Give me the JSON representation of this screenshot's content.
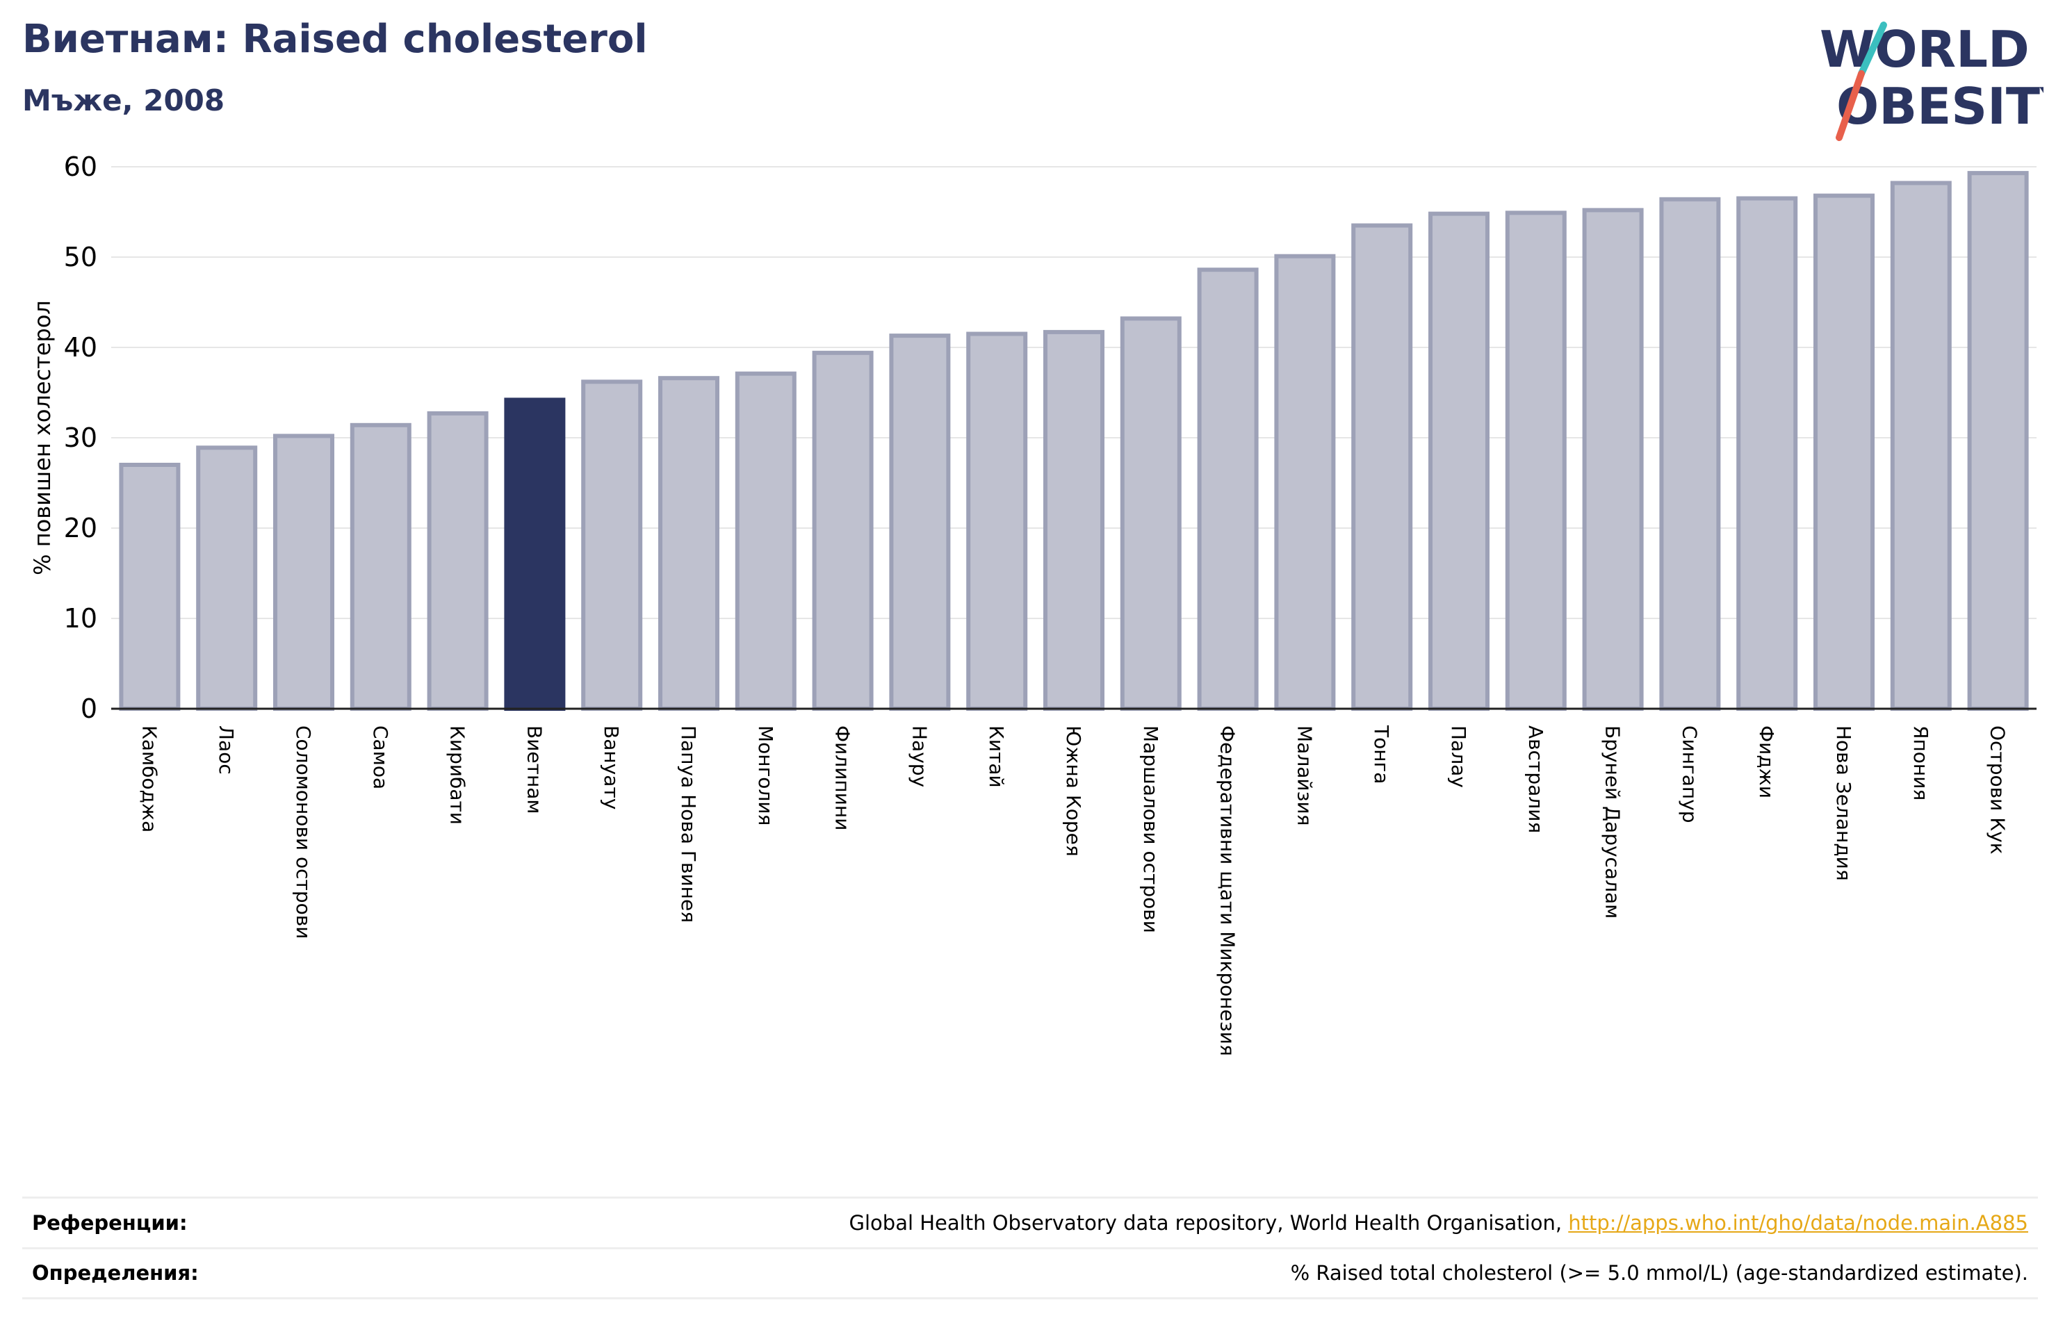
{
  "header": {
    "title": "Виетнам: Raised cholesterol",
    "subtitle": "Мъже, 2008"
  },
  "logo": {
    "line1": "WORLD",
    "line2": "OBESITY",
    "accent_teal": "#3bbfbf",
    "accent_red": "#e8604c"
  },
  "colors": {
    "highlight_bar": "#2b3561",
    "bar": "#bfc1cf",
    "bar_border": "#9da1b7",
    "text_dark": "#2b3561"
  },
  "chart_data": {
    "type": "bar",
    "title": "Виетнам: Raised cholesterol",
    "subtitle": "Мъже, 2008",
    "ylabel": "% повишен холестерол",
    "xlabel": "",
    "ylim": [
      0,
      60
    ],
    "yticks": [
      0,
      10,
      20,
      30,
      40,
      50,
      60
    ],
    "grid": true,
    "highlight": "Виетнам",
    "categories": [
      "Камбоджа",
      "Лаос",
      "Соломонови острови",
      "Самоа",
      "Кирибати",
      "Виетнам",
      "Вануату",
      "Папуа Нова Гвинея",
      "Монголия",
      "Филипини",
      "Науру",
      "Китай",
      "Южна Корея",
      "Маршалови острови",
      "Федеративни щати Микронезия",
      "Малайзия",
      "Тонга",
      "Палау",
      "Австралия",
      "Бруней Дарусалам",
      "Сингапур",
      "Фиджи",
      "Нова Зеландия",
      "Япония",
      "Острови Кук"
    ],
    "values": [
      27.0,
      28.9,
      30.2,
      31.4,
      32.7,
      34.2,
      36.2,
      36.6,
      37.1,
      39.4,
      41.3,
      41.5,
      41.7,
      43.2,
      48.6,
      50.1,
      53.5,
      54.8,
      54.9,
      55.2,
      56.4,
      56.5,
      56.8,
      58.2,
      59.3
    ]
  },
  "footer": {
    "references_label": "Референции:",
    "references_text": "Global Health Observatory data repository, World Health Organisation, ",
    "references_link": "http://apps.who.int/gho/data/node.main.A885",
    "definitions_label": "Определения:",
    "definitions_text": "% Raised total cholesterol (>= 5.0 mmol/L) (age-standardized estimate)."
  }
}
